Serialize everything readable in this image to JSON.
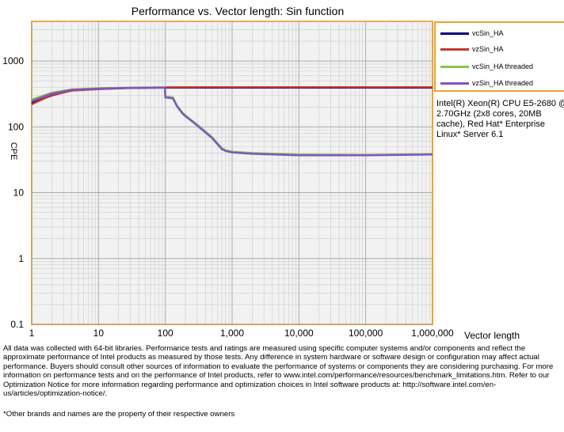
{
  "chart_data": {
    "type": "line",
    "title": "Performance vs. Vector length: Sin function",
    "xlabel": "Vector length",
    "ylabel": "CPE",
    "xscale": "log",
    "yscale": "log",
    "xlim": [
      1,
      1000000
    ],
    "ylim": [
      0.1,
      4000
    ],
    "x_ticks": [
      "1",
      "10",
      "100",
      "1,000",
      "10,000",
      "100,000",
      "1,000,000"
    ],
    "y_ticks": [
      "0.1",
      "1",
      "10",
      "100",
      "1000"
    ],
    "grid": true,
    "legend_position": "right",
    "series": [
      {
        "name": "vcSin_HA",
        "color": "#000080",
        "x": [
          1,
          2,
          4,
          10,
          30,
          100,
          1000,
          10000,
          100000,
          1000000
        ],
        "y": [
          230,
          300,
          360,
          380,
          390,
          395,
          395,
          395,
          395,
          395
        ]
      },
      {
        "name": "vzSin_HA",
        "color": "#c0392b",
        "x": [
          1,
          2,
          4,
          10,
          30,
          100,
          1000,
          10000,
          100000,
          1000000
        ],
        "y": [
          220,
          305,
          355,
          375,
          388,
          398,
          400,
          400,
          400,
          400
        ]
      },
      {
        "name": "vcSin_HA threaded",
        "color": "#8bc34a",
        "x": [
          1,
          2,
          4,
          10,
          30,
          99,
          100,
          130,
          150,
          180,
          200,
          250,
          300,
          400,
          500,
          700,
          800,
          1000,
          2000,
          10000,
          100000,
          1000000
        ],
        "y": [
          260,
          330,
          370,
          385,
          395,
          398,
          290,
          280,
          210,
          165,
          150,
          125,
          108,
          85,
          70,
          48,
          44,
          42,
          40,
          38,
          37.5,
          38.5
        ]
      },
      {
        "name": "vzSin_HA threaded",
        "color": "#7e57c2",
        "x": [
          1,
          2,
          4,
          10,
          30,
          99,
          100,
          130,
          150,
          180,
          200,
          250,
          300,
          400,
          500,
          700,
          800,
          1000,
          2000,
          10000,
          100000,
          1000000
        ],
        "y": [
          245,
          320,
          365,
          380,
          392,
          395,
          280,
          270,
          205,
          160,
          145,
          122,
          105,
          82,
          68,
          46,
          43,
          41,
          39,
          37,
          37,
          38
        ]
      }
    ]
  },
  "cpu_note": "Intel(R) Xeon(R) CPU E5-2680 @ 2.70GHz (2x8 cores, 20MB cache), Red Hat* Enterprise Linux* Server 6.1",
  "footer_text": "All data was collected with 64-bit libraries. Performance tests and ratings are measured using specific computer systems and/or components and reflect the approximate performance of Intel products as measured by those tests. Any difference in system hardware or software design or configuration may affect actual performance. Buyers should consult other sources of information to evaluate the performance of systems or components they are considering purchasing. For more information on performance tests and on the performance of Intel products, refer to www.intel.com/performance/resources/benchmark_limitations.htm. Refer to our Optimization Notice for more information regarding performance and optimization choices in Intel software products at: http://software.intel.com/en-us/articles/optimization-notice/.",
  "footer_note": "*Other brands and names are the property of their respective owners"
}
